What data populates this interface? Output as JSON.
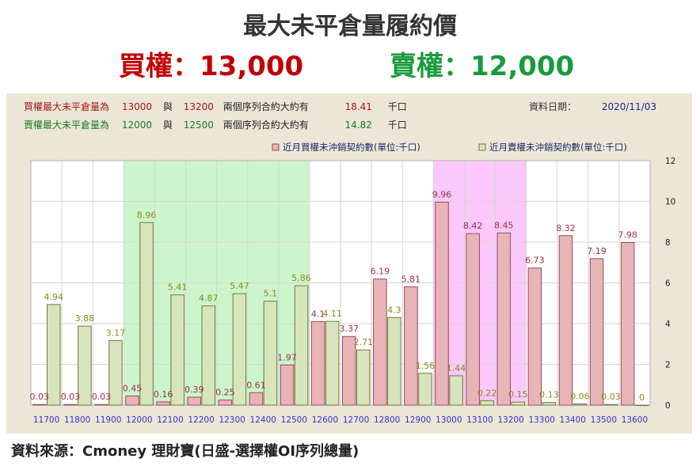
{
  "header": {
    "title": "最大未平倉量履約價",
    "call_label": "買權：13,000",
    "put_label": "賣權：12,000"
  },
  "info": {
    "call_row": {
      "label": "買權最大未平倉量為",
      "strike1": "13000",
      "connector": "與",
      "strike2": "13200",
      "desc": "兩個序列合約大約有",
      "amount": "18.41",
      "unit": "千口"
    },
    "put_row": {
      "label": "賣權最大未平倉量為",
      "strike1": "12000",
      "connector": "與",
      "strike2": "12500",
      "desc": "兩個序列合約大約有",
      "amount": "14.82",
      "unit": "千口"
    },
    "date_label": "資料日期：",
    "date_value": "2020/11/03"
  },
  "colors": {
    "call_bar": "#e8b4b8",
    "put_bar": "#d8e4bc",
    "call_text": "#9b2d48",
    "put_text": "#8a8a1a",
    "green_highlight": "#ccf5cc",
    "pink_highlight": "#fbc8fb",
    "axis_text": "#3333cc"
  },
  "chart_data": {
    "type": "bar",
    "categories": [
      "11700",
      "11800",
      "11900",
      "12000",
      "12100",
      "12200",
      "12300",
      "12400",
      "12500",
      "12600",
      "12700",
      "12800",
      "12900",
      "13000",
      "13100",
      "13200",
      "13300",
      "13400",
      "13500",
      "13600"
    ],
    "series": [
      {
        "name": "近月買權未沖銷契約數(單位:千口)",
        "values": [
          0.03,
          0.03,
          0.03,
          0.45,
          0.16,
          0.39,
          0.25,
          0.61,
          1.97,
          4.1,
          3.37,
          6.19,
          5.81,
          9.96,
          8.42,
          8.45,
          6.73,
          8.32,
          7.19,
          7.98
        ]
      },
      {
        "name": "近月賣權未沖銷契約數(單位:千口)",
        "values": [
          4.94,
          3.88,
          3.17,
          8.96,
          5.41,
          4.87,
          5.47,
          5.1,
          5.86,
          4.11,
          2.71,
          4.3,
          1.56,
          1.44,
          0.22,
          0.15,
          0.13,
          0.06,
          0.03,
          0
        ]
      }
    ],
    "call_labels": [
      "0.03",
      "0.03",
      "0.03",
      "0.45",
      "0.16",
      "0.39",
      "0.25",
      "0.61",
      "1.97",
      "4.1",
      "3.37",
      "6.19",
      "5.81",
      "9.96",
      "8.42",
      "8.45",
      "6.73",
      "8.32",
      "7.19",
      "7.98"
    ],
    "put_labels": [
      "4.94",
      "3.88",
      "3.17",
      "8.96",
      "5.41",
      "4.87",
      "5.47",
      "5.1",
      "5.86",
      "4.11",
      "2.71",
      "4.3",
      "1.56",
      "1.44",
      "0.22",
      "0.15",
      "0.13",
      "0.06",
      "0.03",
      "0"
    ],
    "yticks": [
      "0",
      "2",
      "4",
      "6",
      "8",
      "10",
      "12"
    ],
    "ylim": [
      0,
      12
    ],
    "highlights": [
      {
        "from": "12000",
        "to": "12500",
        "color": "green"
      },
      {
        "from": "13000",
        "to": "13200",
        "color": "pink"
      }
    ],
    "grid": true,
    "legend_position": "top-right"
  },
  "footer": {
    "source": "資料來源：Cmoney 理財寶(日盛-選擇權OI序列總量)"
  }
}
